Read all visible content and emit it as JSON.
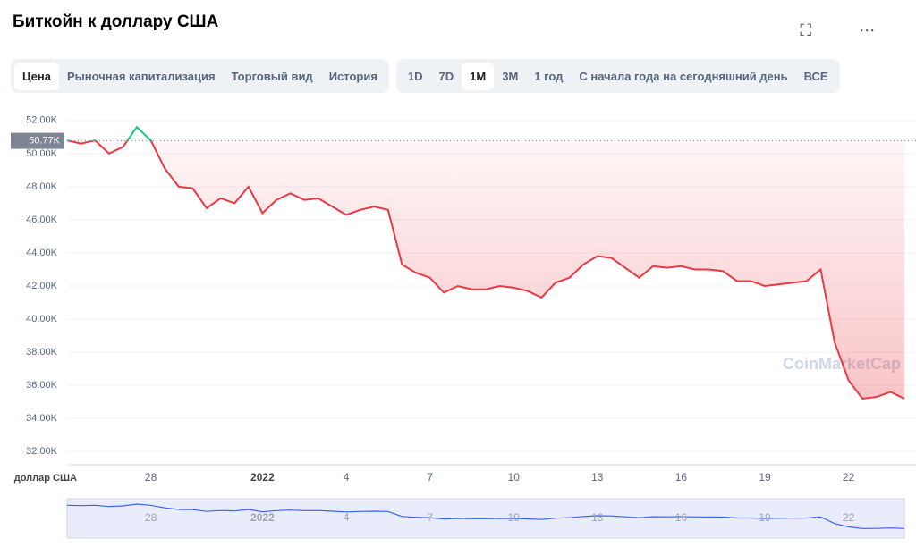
{
  "header": {
    "title": "Биткойн к доллару США",
    "tabs": [
      "Цена",
      "Рыночная капитализация",
      "Торговый вид",
      "История"
    ],
    "ranges": [
      "1D",
      "7D",
      "1M",
      "3M",
      "1 год",
      "С начала года на сегодняшний день",
      "ВСЕ"
    ]
  },
  "chart_data": {
    "type": "line",
    "axis_label": "доллар США",
    "watermark": "CoinMarketCap",
    "categories": [
      null,
      null,
      null,
      null,
      null,
      null,
      "28",
      null,
      null,
      null,
      null,
      null,
      null,
      null,
      "2022",
      null,
      null,
      null,
      null,
      null,
      "4",
      null,
      null,
      null,
      null,
      null,
      "7",
      null,
      null,
      null,
      null,
      null,
      "10",
      null,
      null,
      null,
      null,
      null,
      "13",
      null,
      null,
      null,
      null,
      null,
      "16",
      null,
      null,
      null,
      null,
      null,
      "19",
      null,
      null,
      null,
      null,
      null,
      "22",
      null,
      null,
      null,
      null
    ],
    "values": [
      50.8,
      50.6,
      50.8,
      50.0,
      50.4,
      51.6,
      50.8,
      49.1,
      48.0,
      47.9,
      46.7,
      47.3,
      47.0,
      48.0,
      46.4,
      47.2,
      47.6,
      47.2,
      47.3,
      46.8,
      46.3,
      46.6,
      46.8,
      46.6,
      43.3,
      42.8,
      42.5,
      41.6,
      42.0,
      41.8,
      41.8,
      42.0,
      41.9,
      41.7,
      41.3,
      42.2,
      42.5,
      43.3,
      43.8,
      43.7,
      43.1,
      42.5,
      43.2,
      43.1,
      43.2,
      43.0,
      43.0,
      42.9,
      42.3,
      42.3,
      42.0,
      42.1,
      42.2,
      42.3,
      43.0,
      38.6,
      36.3,
      35.2,
      35.3,
      35.6,
      35.2
    ],
    "reference": {
      "value": 50.77,
      "label": "50.77K"
    },
    "colors": {
      "up": "#16c784",
      "down": "#ea3943"
    },
    "ylim": [
      31.2,
      52.8
    ],
    "yticks": [
      {
        "value": 32,
        "label": "32.00K"
      },
      {
        "value": 34,
        "label": "34.00K"
      },
      {
        "value": 36,
        "label": "36.00K"
      },
      {
        "value": 38,
        "label": "38.00K"
      },
      {
        "value": 40,
        "label": "40.00K"
      },
      {
        "value": 42,
        "label": "42.00K"
      },
      {
        "value": 44,
        "label": "44.00K"
      },
      {
        "value": 46,
        "label": "46.00K"
      },
      {
        "value": 48,
        "label": "48.00K"
      },
      {
        "value": 50,
        "label": "50.00K"
      },
      {
        "value": 52,
        "label": "52.00K"
      }
    ],
    "grid": true
  }
}
